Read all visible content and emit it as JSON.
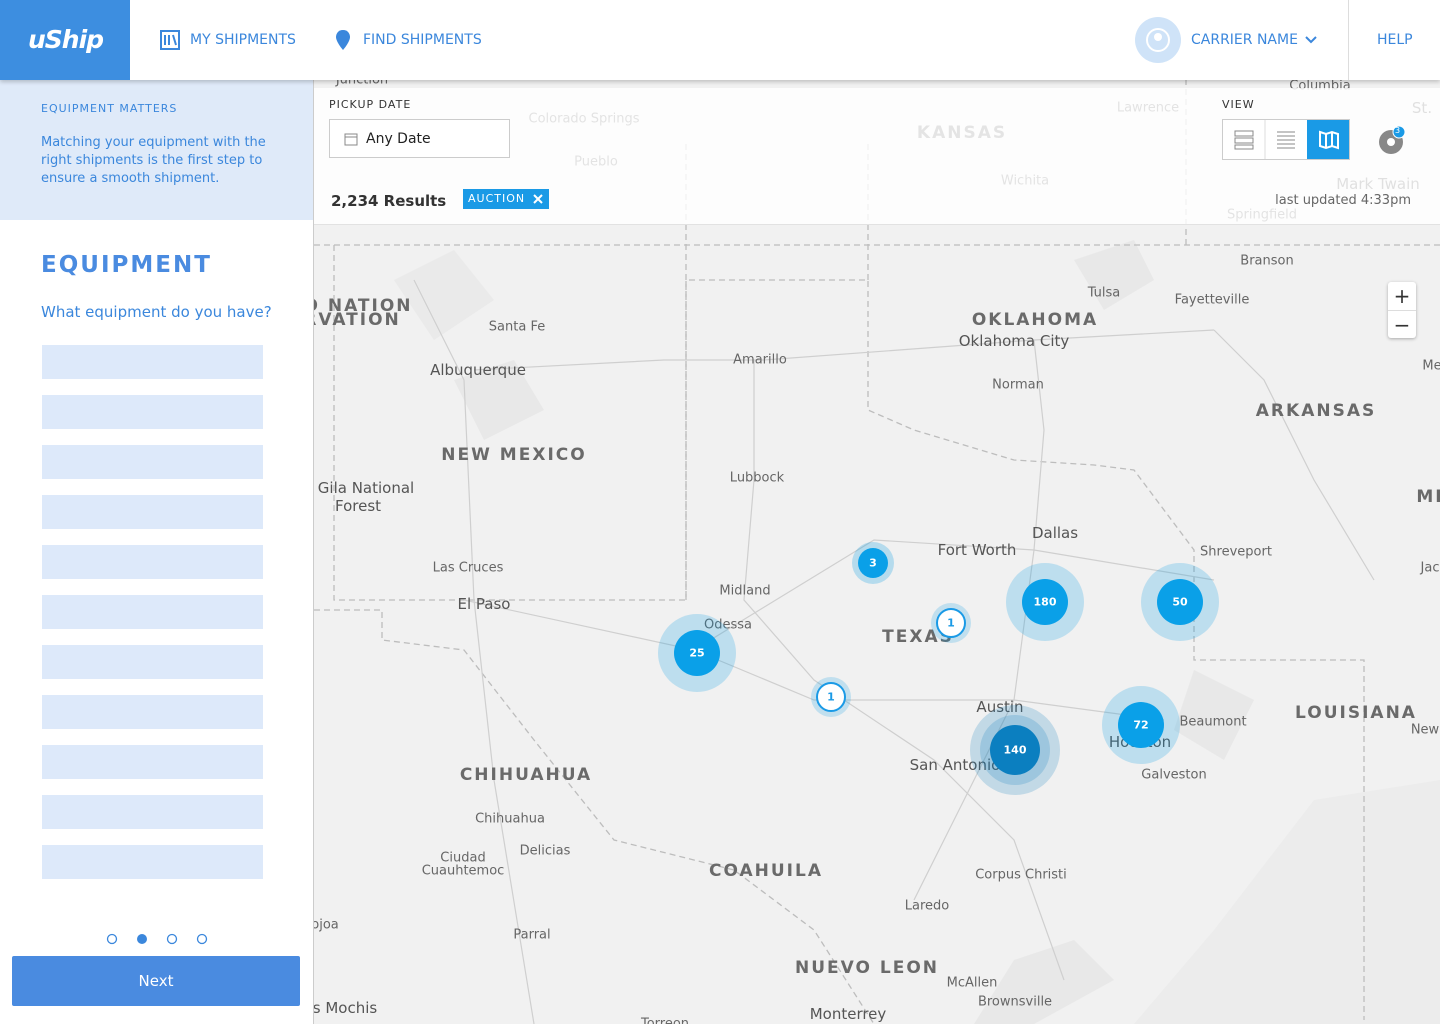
{
  "header": {
    "logo": "uShip",
    "nav": [
      "MY SHIPMENTS",
      "FIND SHIPMENTS"
    ],
    "user": "CARRIER NAME",
    "help": "HELP"
  },
  "sidebar": {
    "info_title": "EQUIPMENT MATTERS",
    "info_text": "Matching your equipment with the right shipments is the first step to ensure a smooth shipment.",
    "heading": "EQUIPMENT",
    "question": "What equipment do you have?",
    "next": "Next"
  },
  "filters": {
    "pickup_label": "PICKUP DATE",
    "pickup_value": "Any Date",
    "view_label": "VIEW",
    "notifications": 3,
    "results": "2,234 Results",
    "tag": "AUCTION",
    "updated": "last updated 4:33pm"
  },
  "map": {
    "labels": [
      "Junction",
      "Colorado Springs",
      "Pueblo",
      "KANSAS",
      "Lawrence",
      "Wichita",
      "Columbia",
      "St.",
      "Mark Twain",
      "Springfield",
      "Branson",
      "Tulsa",
      "Fayetteville",
      "O NATION",
      "RVATION",
      "Santa Fe",
      "OKLAHOMA",
      "Oklahoma City",
      "Amarillo",
      "Albuquerque",
      "Norman",
      "Me",
      "ARKANSAS",
      "NEW MEXICO",
      "Lubbock",
      "Gila National",
      "Forest",
      "MI",
      "Dallas",
      "Fort Worth",
      "Shreveport",
      "Jac",
      "Las Cruces",
      "Midland",
      "El Paso",
      "Odessa",
      "TEXAS",
      "Austin",
      "LOUISIANA",
      "Beaumont",
      "New",
      "Houston",
      "San Antonio",
      "Galveston",
      "CHIHUAHUA",
      "Chihuahua",
      "Delicias",
      "Ciudad",
      "Cuauhtemoc",
      "COAHUILA",
      "Corpus Christi",
      "Laredo",
      "ojoa",
      "Parral",
      "NUEVO LEON",
      "McAllen",
      "Brownsville",
      "s Mochis",
      "Monterrey",
      "Torreon"
    ],
    "clusters": [
      3,
      1,
      180,
      50,
      25,
      1,
      72,
      140
    ],
    "zoom": [
      "+",
      "−"
    ]
  }
}
